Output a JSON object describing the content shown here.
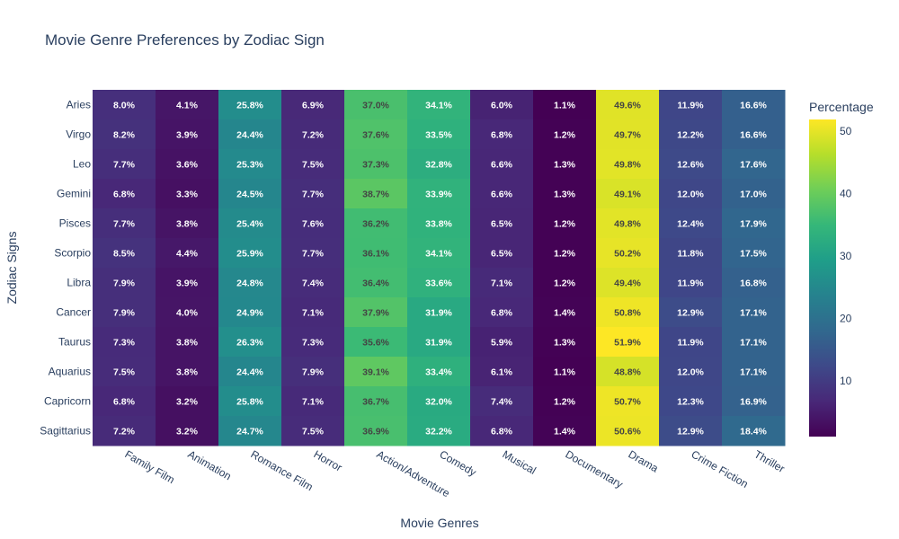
{
  "chart_data": {
    "type": "heatmap",
    "title": "Movie Genre Preferences by Zodiac Sign",
    "xlabel": "Movie Genres",
    "ylabel": "Zodiac Signs",
    "colorbar_title": "Percentage",
    "colorscale": "Viridis",
    "zrange": [
      1.1,
      51.9
    ],
    "colorbar_ticks": [
      10,
      20,
      30,
      40,
      50
    ],
    "x": [
      "Family Film",
      "Animation",
      "Romance Film",
      "Horror",
      "Action/Adventure",
      "Comedy",
      "Musical",
      "Documentary",
      "Drama",
      "Crime Fiction",
      "Thriller"
    ],
    "y": [
      "Aries",
      "Virgo",
      "Leo",
      "Gemini",
      "Pisces",
      "Scorpio",
      "Libra",
      "Cancer",
      "Taurus",
      "Aquarius",
      "Capricorn",
      "Sagittarius"
    ],
    "z": [
      [
        8.0,
        4.1,
        25.8,
        6.9,
        37.0,
        34.1,
        6.0,
        1.1,
        49.6,
        11.9,
        16.6
      ],
      [
        8.2,
        3.9,
        24.4,
        7.2,
        37.6,
        33.5,
        6.8,
        1.2,
        49.7,
        12.2,
        16.6
      ],
      [
        7.7,
        3.6,
        25.3,
        7.5,
        37.3,
        32.8,
        6.6,
        1.3,
        49.8,
        12.6,
        17.6
      ],
      [
        6.8,
        3.3,
        24.5,
        7.7,
        38.7,
        33.9,
        6.6,
        1.3,
        49.1,
        12.0,
        17.0
      ],
      [
        7.7,
        3.8,
        25.4,
        7.6,
        36.2,
        33.8,
        6.5,
        1.2,
        49.8,
        12.4,
        17.9
      ],
      [
        8.5,
        4.4,
        25.9,
        7.7,
        36.1,
        34.1,
        6.5,
        1.2,
        50.2,
        11.8,
        17.5
      ],
      [
        7.9,
        3.9,
        24.8,
        7.4,
        36.4,
        33.6,
        7.1,
        1.2,
        49.4,
        11.9,
        16.8
      ],
      [
        7.9,
        4.0,
        24.9,
        7.1,
        37.9,
        31.9,
        6.8,
        1.4,
        50.8,
        12.9,
        17.1
      ],
      [
        7.3,
        3.8,
        26.3,
        7.3,
        35.6,
        31.9,
        5.9,
        1.3,
        51.9,
        11.9,
        17.1
      ],
      [
        7.5,
        3.8,
        24.4,
        7.9,
        39.1,
        33.4,
        6.1,
        1.1,
        48.8,
        12.0,
        17.1
      ],
      [
        6.8,
        3.2,
        25.8,
        7.1,
        36.7,
        32.0,
        7.4,
        1.2,
        50.7,
        12.3,
        16.9
      ],
      [
        7.2,
        3.2,
        24.7,
        7.5,
        36.9,
        32.2,
        6.8,
        1.4,
        50.6,
        12.9,
        18.4
      ]
    ]
  }
}
